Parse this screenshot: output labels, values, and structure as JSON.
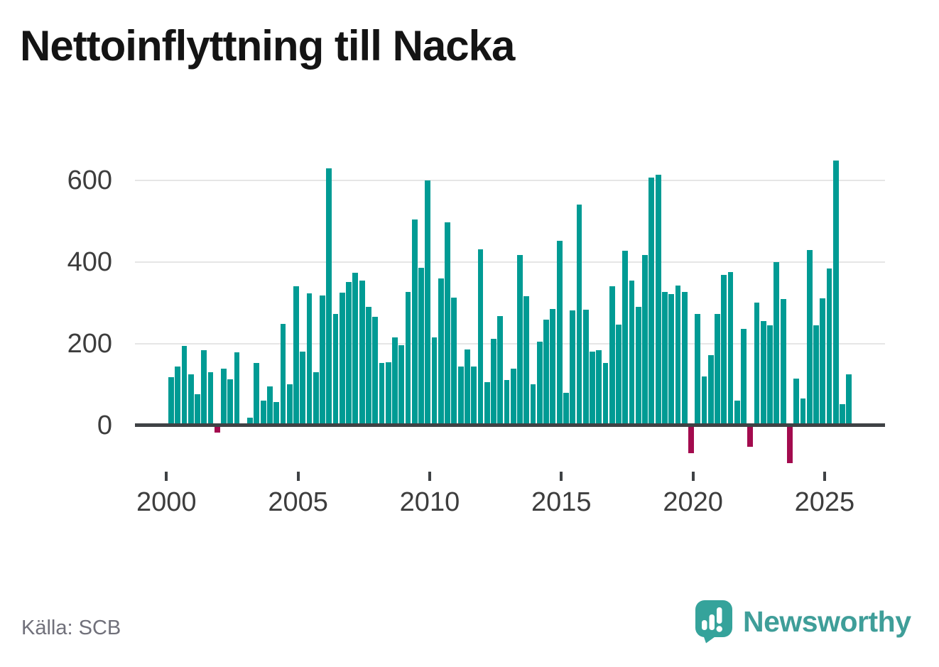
{
  "header": {
    "title": "Nettoinflyttning till Nacka"
  },
  "footer": {
    "source": "Källa: SCB",
    "brand": "Newsworthy"
  },
  "colors": {
    "bar_positive": "#009B94",
    "bar_negative": "#A30B4E",
    "axis": "#3F4245",
    "gridline": "#E6E6E6",
    "title_text": "#141414",
    "tick_text": "#3D3D3D",
    "source_text": "#70707A",
    "brand_text": "#3F9E99",
    "logo_bubble": "#35A39B"
  },
  "chart_data": {
    "type": "bar",
    "title": "Nettoinflyttning till Nacka",
    "source": "Källa: SCB",
    "grid": "horizontal",
    "legend": "none",
    "x_axis": {
      "tick_labels": [
        "2000",
        "2005",
        "2010",
        "2015",
        "2020",
        "2025"
      ]
    },
    "y_axis": {
      "tick_labels": [
        "0",
        "200",
        "400",
        "600"
      ],
      "tick_values": [
        0,
        200,
        400,
        600
      ],
      "ylim": [
        -110,
        660
      ]
    },
    "categories": [
      "2000 Q1",
      "2000 Q2",
      "2000 Q3",
      "2000 Q4",
      "2001 Q1",
      "2001 Q2",
      "2001 Q3",
      "2001 Q4",
      "2002 Q1",
      "2002 Q2",
      "2002 Q3",
      "2002 Q4",
      "2003 Q1",
      "2003 Q2",
      "2003 Q3",
      "2003 Q4",
      "2004 Q1",
      "2004 Q2",
      "2004 Q3",
      "2004 Q4",
      "2005 Q1",
      "2005 Q2",
      "2005 Q3",
      "2005 Q4",
      "2006 Q1",
      "2006 Q2",
      "2006 Q3",
      "2006 Q4",
      "2007 Q1",
      "2007 Q2",
      "2007 Q3",
      "2007 Q4",
      "2008 Q1",
      "2008 Q2",
      "2008 Q3",
      "2008 Q4",
      "2009 Q1",
      "2009 Q2",
      "2009 Q3",
      "2009 Q4",
      "2010 Q1",
      "2010 Q2",
      "2010 Q3",
      "2010 Q4",
      "2011 Q1",
      "2011 Q2",
      "2011 Q3",
      "2011 Q4",
      "2012 Q1",
      "2012 Q2",
      "2012 Q3",
      "2012 Q4",
      "2013 Q1",
      "2013 Q2",
      "2013 Q3",
      "2013 Q4",
      "2014 Q1",
      "2014 Q2",
      "2014 Q3",
      "2014 Q4",
      "2015 Q1",
      "2015 Q2",
      "2015 Q3",
      "2015 Q4",
      "2016 Q1",
      "2016 Q2",
      "2016 Q3",
      "2016 Q4",
      "2017 Q1",
      "2017 Q2",
      "2017 Q3",
      "2017 Q4",
      "2018 Q1",
      "2018 Q2",
      "2018 Q3",
      "2018 Q4",
      "2019 Q1",
      "2019 Q2",
      "2019 Q3",
      "2019 Q4",
      "2020 Q1",
      "2020 Q2",
      "2020 Q3",
      "2020 Q4",
      "2021 Q1",
      "2021 Q2",
      "2021 Q3",
      "2021 Q4",
      "2022 Q1",
      "2022 Q2",
      "2022 Q3",
      "2022 Q4",
      "2023 Q1",
      "2023 Q2",
      "2023 Q3",
      "2023 Q4",
      "2024 Q1",
      "2024 Q2",
      "2024 Q3",
      "2024 Q4",
      "2025 Q1",
      "2025 Q2",
      "2025 Q3",
      "2025 Q4"
    ],
    "values": [
      118,
      143,
      195,
      125,
      75,
      183,
      130,
      -15,
      138,
      113,
      178,
      5,
      19,
      152,
      60,
      95,
      57,
      248,
      100,
      340,
      181,
      323,
      130,
      318,
      630,
      273,
      325,
      352,
      373,
      355,
      290,
      266,
      153,
      155,
      215,
      196,
      327,
      505,
      386,
      600,
      215,
      360,
      497,
      313,
      143,
      186,
      143,
      432,
      106,
      212,
      268,
      111,
      138,
      418,
      317,
      100,
      204,
      259,
      285,
      452,
      80,
      282,
      541,
      283,
      181,
      183,
      152,
      340,
      247,
      428,
      355,
      291,
      417,
      607,
      614,
      327,
      322,
      343,
      327,
      -65,
      272,
      120,
      171,
      272,
      369,
      375,
      60,
      237,
      -50,
      300,
      256,
      244,
      400,
      310,
      -90,
      114,
      66,
      430,
      244,
      311,
      384,
      650,
      52,
      124
    ]
  }
}
